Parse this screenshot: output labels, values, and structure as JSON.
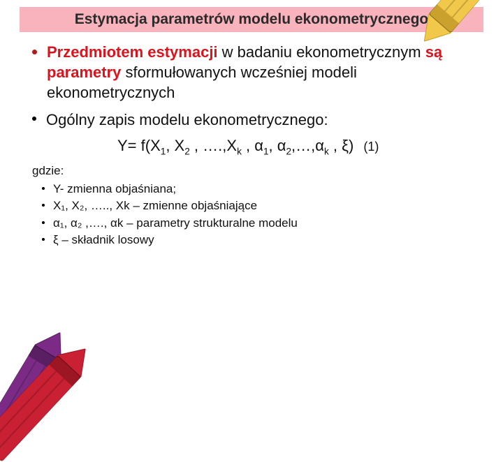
{
  "colors": {
    "title_bg": "#f8b3bd",
    "title_text": "#2a2a2a",
    "accent_red": "#d8141e",
    "bullet_red": "#b01b1b",
    "text": "#111111"
  },
  "title": "Estymacja parametrów modelu ekonometrycznego",
  "bullet1": {
    "t1": "Przedmiotem estymacji",
    "t2": " w badaniu ekonometrycznym ",
    "t3": "są parametry",
    "t4": " sformułowanych wcześniej modeli ekonometrycznych"
  },
  "bullet2": "Ogólny zapis modelu ekonometrycznego:",
  "formula": {
    "pre": "Y= f(X",
    "p1": "1",
    "s2": ", X",
    "p2": "2",
    "s3": " , ….,X",
    "pk": "k",
    "s4": " , α",
    "a1": "1",
    "s5": ", α",
    "a2": "2",
    "s6": ",…,α",
    "ak": "k",
    "tail": " , ξ)",
    "eqnum": "(1)"
  },
  "gdzie": "gdzie:",
  "defs": [
    "Y- zmienna objaśniana;",
    "X₁, X₂, ….., Xk – zmienne objaśniające",
    "α₁, α₂ ,…., αk – parametry strukturalne modelu",
    "ξ – składnik losowy"
  ],
  "crayons": {
    "top_right": {
      "body": "#f2c84b",
      "dark": "#caa12d",
      "tip": "#f2c84b"
    },
    "bottom_left_back": {
      "body": "#7b2b86",
      "dark": "#5a1e63",
      "tip": "#7b2b86"
    },
    "bottom_left_front": {
      "body": "#c92033",
      "dark": "#9c1624",
      "tip": "#c92033"
    }
  }
}
